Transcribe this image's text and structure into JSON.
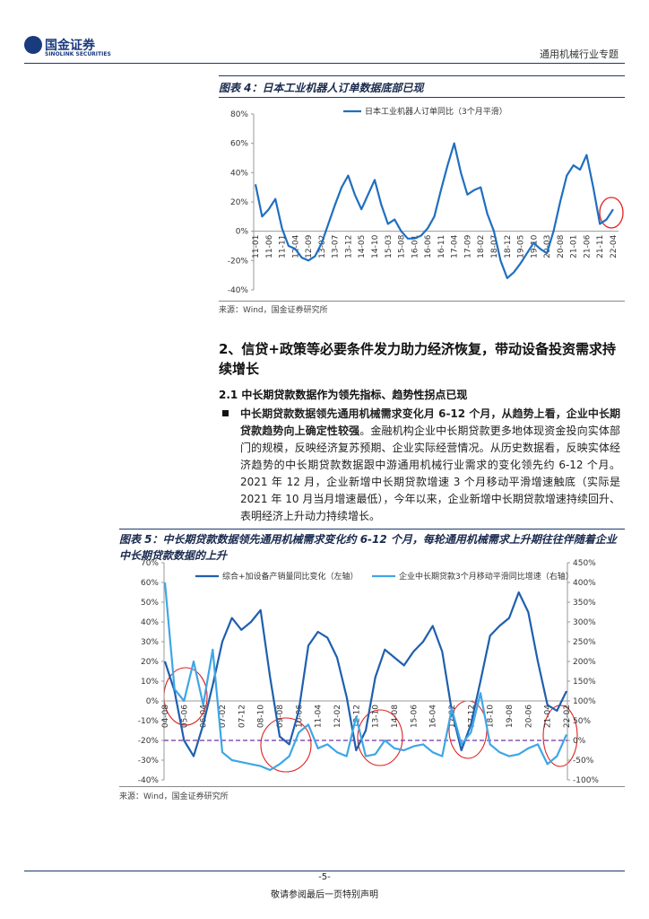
{
  "header": {
    "logo_cn": "国金证券",
    "logo_en": "SINOLINK SECURITIES",
    "doc_title": "通用机械行业专题"
  },
  "section": {
    "heading": "2、信贷+政策等必要条件发力助力经济恢复，带动设备投资需求持续增长",
    "subheading": "2.1 中长期贷款数据作为领先指标、趋势性拐点已现",
    "bullet_bold": "中长期贷款数据领先通用机械需求变化月 6-12 个月，从趋势上看，企业中长期贷款趋势向上确定性较强",
    "bullet_text": "。金融机构企业中长期贷款更多地体现资金投向实体部门的规模，反映经济复苏预期、企业实际经营情况。从历史数据看，反映实体经济趋势的中长期贷款数据跟中游通用机械行业需求的变化领先约 6-12 个月。2021 年 12 月，企业新增中长期贷款增速 3 个月移动平滑增速触底（实际是 2021 年 10 月当月增速最低），今年以来，企业新增中长期贷款增速持续回升、表明经济上升动力持续增长。"
  },
  "footer": {
    "page": "-5-",
    "note": "敬请参阅最后一页特别声明"
  },
  "chart_data": [
    {
      "type": "line",
      "title": "图表 4：日本工业机器人订单数据底部已现",
      "source": "来源：Wind，国金证券研究所",
      "categories": [
        "11-01",
        null,
        "11-06",
        null,
        "11-11",
        null,
        "12-04",
        null,
        "12-09",
        null,
        "13-02",
        null,
        "13-07",
        null,
        "13-12",
        null,
        "14-05",
        null,
        "14-10",
        null,
        "15-03",
        null,
        "15-08",
        null,
        "16-01",
        null,
        "16-06",
        null,
        "16-11",
        null,
        "17-04",
        null,
        "17-09",
        null,
        "18-02",
        null,
        "18-07",
        null,
        "18-12",
        null,
        "19-05",
        null,
        "19-10",
        null,
        "20-03",
        null,
        "20-08",
        null,
        "21-01",
        null,
        "21-06",
        null,
        "21-11",
        null,
        "22-04"
      ],
      "series": [
        {
          "name": "日本工业机器人订单同比（3个月平滑）",
          "color": "#1f6fc0",
          "values": [
            32,
            10,
            15,
            22,
            2,
            -10,
            -12,
            -18,
            -20,
            -17,
            -8,
            5,
            18,
            30,
            38,
            25,
            15,
            25,
            35,
            18,
            5,
            8,
            0,
            -5,
            -5,
            -3,
            2,
            10,
            28,
            45,
            60,
            40,
            25,
            28,
            30,
            12,
            0,
            -20,
            -32,
            -28,
            -22,
            -15,
            -8,
            -12,
            -15,
            0,
            20,
            38,
            45,
            42,
            52,
            30,
            5,
            8,
            15
          ]
        }
      ],
      "ylim": [
        -40,
        80
      ],
      "yticks": [
        {
          "value": -40,
          "label": "-40%"
        },
        {
          "value": -20,
          "label": "-20%"
        },
        {
          "value": 0,
          "label": "0%"
        },
        {
          "value": 20,
          "label": "20%"
        },
        {
          "value": 40,
          "label": "40%"
        },
        {
          "value": 60,
          "label": "60%"
        },
        {
          "value": 80,
          "label": "80%"
        }
      ]
    },
    {
      "type": "line",
      "title": "图表 5：中长期贷款数据领先通用机械需求变化约 6-12 个月，每轮通用机械需求上升期往往伴随着企业中长期贷款数据的上升",
      "source": "来源：Wind，国金证券研究所",
      "categories": [
        "04-08",
        null,
        "05-06",
        null,
        "06-04",
        null,
        "07-02",
        null,
        "07-12",
        null,
        "08-10",
        null,
        "09-08",
        null,
        "10-06",
        null,
        "11-04",
        null,
        "12-02",
        null,
        "12-12",
        null,
        "13-10",
        null,
        "14-08",
        null,
        "15-06",
        null,
        "16-04",
        null,
        "17-02",
        null,
        "17-12",
        null,
        "18-10",
        null,
        "19-08",
        null,
        "20-06",
        null,
        "21-04",
        null,
        "22-02"
      ],
      "series": [
        {
          "name": "综合+加设备产销量同比变化（左轴）",
          "color": "#1f5fae",
          "values": [
            20,
            5,
            -20,
            -28,
            -12,
            8,
            30,
            42,
            36,
            40,
            46,
            12,
            -18,
            -22,
            -5,
            28,
            35,
            32,
            22,
            2,
            -25,
            -15,
            12,
            26,
            22,
            18,
            25,
            30,
            38,
            25,
            -5,
            -25,
            -12,
            10,
            33,
            38,
            42,
            55,
            45,
            20,
            -2,
            -5,
            5
          ]
        },
        {
          "name": "企业中长期贷款3个月移动平滑同比增速（右轴）",
          "color": "#3ea6e6",
          "axis": "y2",
          "values": [
            400,
            130,
            100,
            200,
            90,
            230,
            -30,
            -50,
            -55,
            -60,
            -65,
            -75,
            -60,
            -40,
            20,
            40,
            -20,
            -10,
            -30,
            -40,
            60,
            -40,
            -35,
            0,
            -20,
            -25,
            -15,
            -10,
            -30,
            -40,
            80,
            -10,
            20,
            120,
            -10,
            -30,
            -40,
            -35,
            -20,
            -10,
            -60,
            -40,
            15
          ]
        }
      ],
      "reference_line": -20,
      "ylim": [
        -40,
        70
      ],
      "yticks": [
        {
          "value": -40,
          "label": "-40%"
        },
        {
          "value": -30,
          "label": "-30%"
        },
        {
          "value": -20,
          "label": "-20%"
        },
        {
          "value": -10,
          "label": "-10%"
        },
        {
          "value": 0,
          "label": "0%"
        },
        {
          "value": 10,
          "label": "10%"
        },
        {
          "value": 20,
          "label": "20%"
        },
        {
          "value": 30,
          "label": "30%"
        },
        {
          "value": 40,
          "label": "40%"
        },
        {
          "value": 50,
          "label": "50%"
        },
        {
          "value": 60,
          "label": "60%"
        },
        {
          "value": 70,
          "label": "70%"
        }
      ],
      "y2lim": [
        -100,
        450
      ],
      "y2ticks": [
        {
          "value": -100,
          "label": "-100%"
        },
        {
          "value": -50,
          "label": "-50%"
        },
        {
          "value": 0,
          "label": "0%"
        },
        {
          "value": 50,
          "label": "50%"
        },
        {
          "value": 100,
          "label": "100%"
        },
        {
          "value": 150,
          "label": "150%"
        },
        {
          "value": 200,
          "label": "200%"
        },
        {
          "value": 250,
          "label": "250%"
        },
        {
          "value": 300,
          "label": "300%"
        },
        {
          "value": 350,
          "label": "350%"
        },
        {
          "value": 400,
          "label": "400%"
        },
        {
          "value": 450,
          "label": "450%"
        }
      ]
    }
  ]
}
